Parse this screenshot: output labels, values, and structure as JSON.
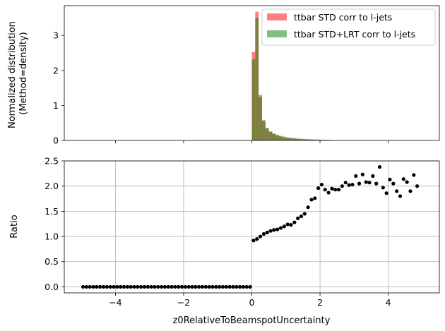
{
  "chart_data": [
    {
      "type": "bar",
      "subtype": "histogram-overlay",
      "ylabel_lines": [
        "Normalized distribution",
        "(Method=density)"
      ],
      "xlim": [
        -5.5,
        5.5
      ],
      "ylim": [
        0,
        3.85
      ],
      "yticks": [
        0,
        1,
        2,
        3
      ],
      "grid": false,
      "legend_position": "top-right",
      "bin_edges_range": [
        -5,
        5
      ],
      "bin_width": 0.1,
      "series": [
        {
          "name": "ttbar STD corr to l-jets",
          "color": "#ff0000",
          "alpha": 0.5,
          "bins": [
            {
              "x0": 0.0,
              "y": 2.53
            },
            {
              "x0": 0.1,
              "y": 3.68
            },
            {
              "x0": 0.2,
              "y": 1.23
            },
            {
              "x0": 0.3,
              "y": 0.55
            },
            {
              "x0": 0.4,
              "y": 0.34
            },
            {
              "x0": 0.5,
              "y": 0.24
            },
            {
              "x0": 0.6,
              "y": 0.18
            },
            {
              "x0": 0.7,
              "y": 0.14
            },
            {
              "x0": 0.8,
              "y": 0.11
            },
            {
              "x0": 0.9,
              "y": 0.09
            },
            {
              "x0": 1.0,
              "y": 0.07
            },
            {
              "x0": 1.1,
              "y": 0.06
            },
            {
              "x0": 1.2,
              "y": 0.05
            },
            {
              "x0": 1.3,
              "y": 0.04
            },
            {
              "x0": 1.4,
              "y": 0.035
            },
            {
              "x0": 1.5,
              "y": 0.03
            },
            {
              "x0": 1.6,
              "y": 0.025
            },
            {
              "x0": 1.7,
              "y": 0.02
            },
            {
              "x0": 1.8,
              "y": 0.016
            },
            {
              "x0": 1.9,
              "y": 0.013
            },
            {
              "x0": 2.0,
              "y": 0.011
            },
            {
              "x0": 2.1,
              "y": 0.009
            },
            {
              "x0": 2.2,
              "y": 0.007
            },
            {
              "x0": 2.3,
              "y": 0.006
            }
          ]
        },
        {
          "name": "ttbar STD+LRT corr to l-jets",
          "color": "#008000",
          "alpha": 0.5,
          "bins": [
            {
              "x0": 0.0,
              "y": 2.32
            },
            {
              "x0": 0.1,
              "y": 3.5
            },
            {
              "x0": 0.2,
              "y": 1.3
            },
            {
              "x0": 0.3,
              "y": 0.58
            },
            {
              "x0": 0.4,
              "y": 0.36
            },
            {
              "x0": 0.5,
              "y": 0.26
            },
            {
              "x0": 0.6,
              "y": 0.2
            },
            {
              "x0": 0.7,
              "y": 0.16
            },
            {
              "x0": 0.8,
              "y": 0.13
            },
            {
              "x0": 0.9,
              "y": 0.11
            },
            {
              "x0": 1.0,
              "y": 0.09
            },
            {
              "x0": 1.1,
              "y": 0.075
            },
            {
              "x0": 1.2,
              "y": 0.065
            },
            {
              "x0": 1.3,
              "y": 0.055
            },
            {
              "x0": 1.4,
              "y": 0.048
            },
            {
              "x0": 1.5,
              "y": 0.042
            },
            {
              "x0": 1.6,
              "y": 0.037
            },
            {
              "x0": 1.7,
              "y": 0.033
            },
            {
              "x0": 1.8,
              "y": 0.029
            },
            {
              "x0": 1.9,
              "y": 0.026
            },
            {
              "x0": 2.0,
              "y": 0.023
            },
            {
              "x0": 2.1,
              "y": 0.02
            },
            {
              "x0": 2.2,
              "y": 0.017
            },
            {
              "x0": 2.3,
              "y": 0.014
            }
          ]
        }
      ]
    },
    {
      "type": "scatter",
      "ylabel": "Ratio",
      "xlabel": "z0RelativeToBeamspotUncertainty",
      "xlim": [
        -5.5,
        5.5
      ],
      "ylim": [
        -0.12,
        2.5
      ],
      "xticks": [
        -4,
        -2,
        0,
        2,
        4
      ],
      "yticks": [
        0.0,
        0.5,
        1.0,
        1.5,
        2.0,
        2.5
      ],
      "ytick_labels": [
        "0.0",
        "0.5",
        "1.0",
        "1.5",
        "2.0",
        "2.5"
      ],
      "grid": true,
      "marker_color": "#000000",
      "x": [
        -4.95,
        -4.85,
        -4.75,
        -4.65,
        -4.55,
        -4.45,
        -4.35,
        -4.25,
        -4.15,
        -4.05,
        -3.95,
        -3.85,
        -3.75,
        -3.65,
        -3.55,
        -3.45,
        -3.35,
        -3.25,
        -3.15,
        -3.05,
        -2.95,
        -2.85,
        -2.75,
        -2.65,
        -2.55,
        -2.45,
        -2.35,
        -2.25,
        -2.15,
        -2.05,
        -1.95,
        -1.85,
        -1.75,
        -1.65,
        -1.55,
        -1.45,
        -1.35,
        -1.25,
        -1.15,
        -1.05,
        -0.95,
        -0.85,
        -0.75,
        -0.65,
        -0.55,
        -0.45,
        -0.35,
        -0.25,
        -0.15,
        -0.05,
        0.05,
        0.15,
        0.25,
        0.35,
        0.45,
        0.55,
        0.65,
        0.75,
        0.85,
        0.95,
        1.05,
        1.15,
        1.25,
        1.35,
        1.45,
        1.55,
        1.65,
        1.75,
        1.85,
        1.95,
        2.05,
        2.15,
        2.25,
        2.35,
        2.45,
        2.55,
        2.65,
        2.75,
        2.85,
        2.95,
        3.05,
        3.15,
        3.25,
        3.35,
        3.45,
        3.55,
        3.65,
        3.75,
        3.85,
        3.95,
        4.05,
        4.15,
        4.25,
        4.35,
        4.45,
        4.55,
        4.65,
        4.75,
        4.85,
        4.95
      ],
      "y": [
        0,
        0,
        0,
        0,
        0,
        0,
        0,
        0,
        0,
        0,
        0,
        0,
        0,
        0,
        0,
        0,
        0,
        0,
        0,
        0,
        0,
        0,
        0,
        0,
        0,
        0,
        0,
        0,
        0,
        0,
        0,
        0,
        0,
        0,
        0,
        0,
        0,
        0,
        0,
        0,
        0,
        0,
        0,
        0,
        0,
        0,
        0,
        0,
        0,
        0,
        0.92,
        0.95,
        1.0,
        1.05,
        1.08,
        1.11,
        1.13,
        1.14,
        1.17,
        1.2,
        1.24,
        1.23,
        1.28,
        1.36,
        1.4,
        1.45,
        1.58,
        1.73,
        1.76,
        1.96,
        2.03,
        1.93,
        1.87,
        1.95,
        1.93,
        1.93,
        2.0,
        2.07,
        2.02,
        2.03,
        2.2,
        2.05,
        2.23,
        2.08,
        2.07,
        2.2,
        2.05,
        2.38,
        1.97,
        1.86,
        2.13,
        2.05,
        1.9,
        1.8,
        2.14,
        2.08,
        1.9,
        2.22,
        2.0,
        null
      ]
    }
  ]
}
